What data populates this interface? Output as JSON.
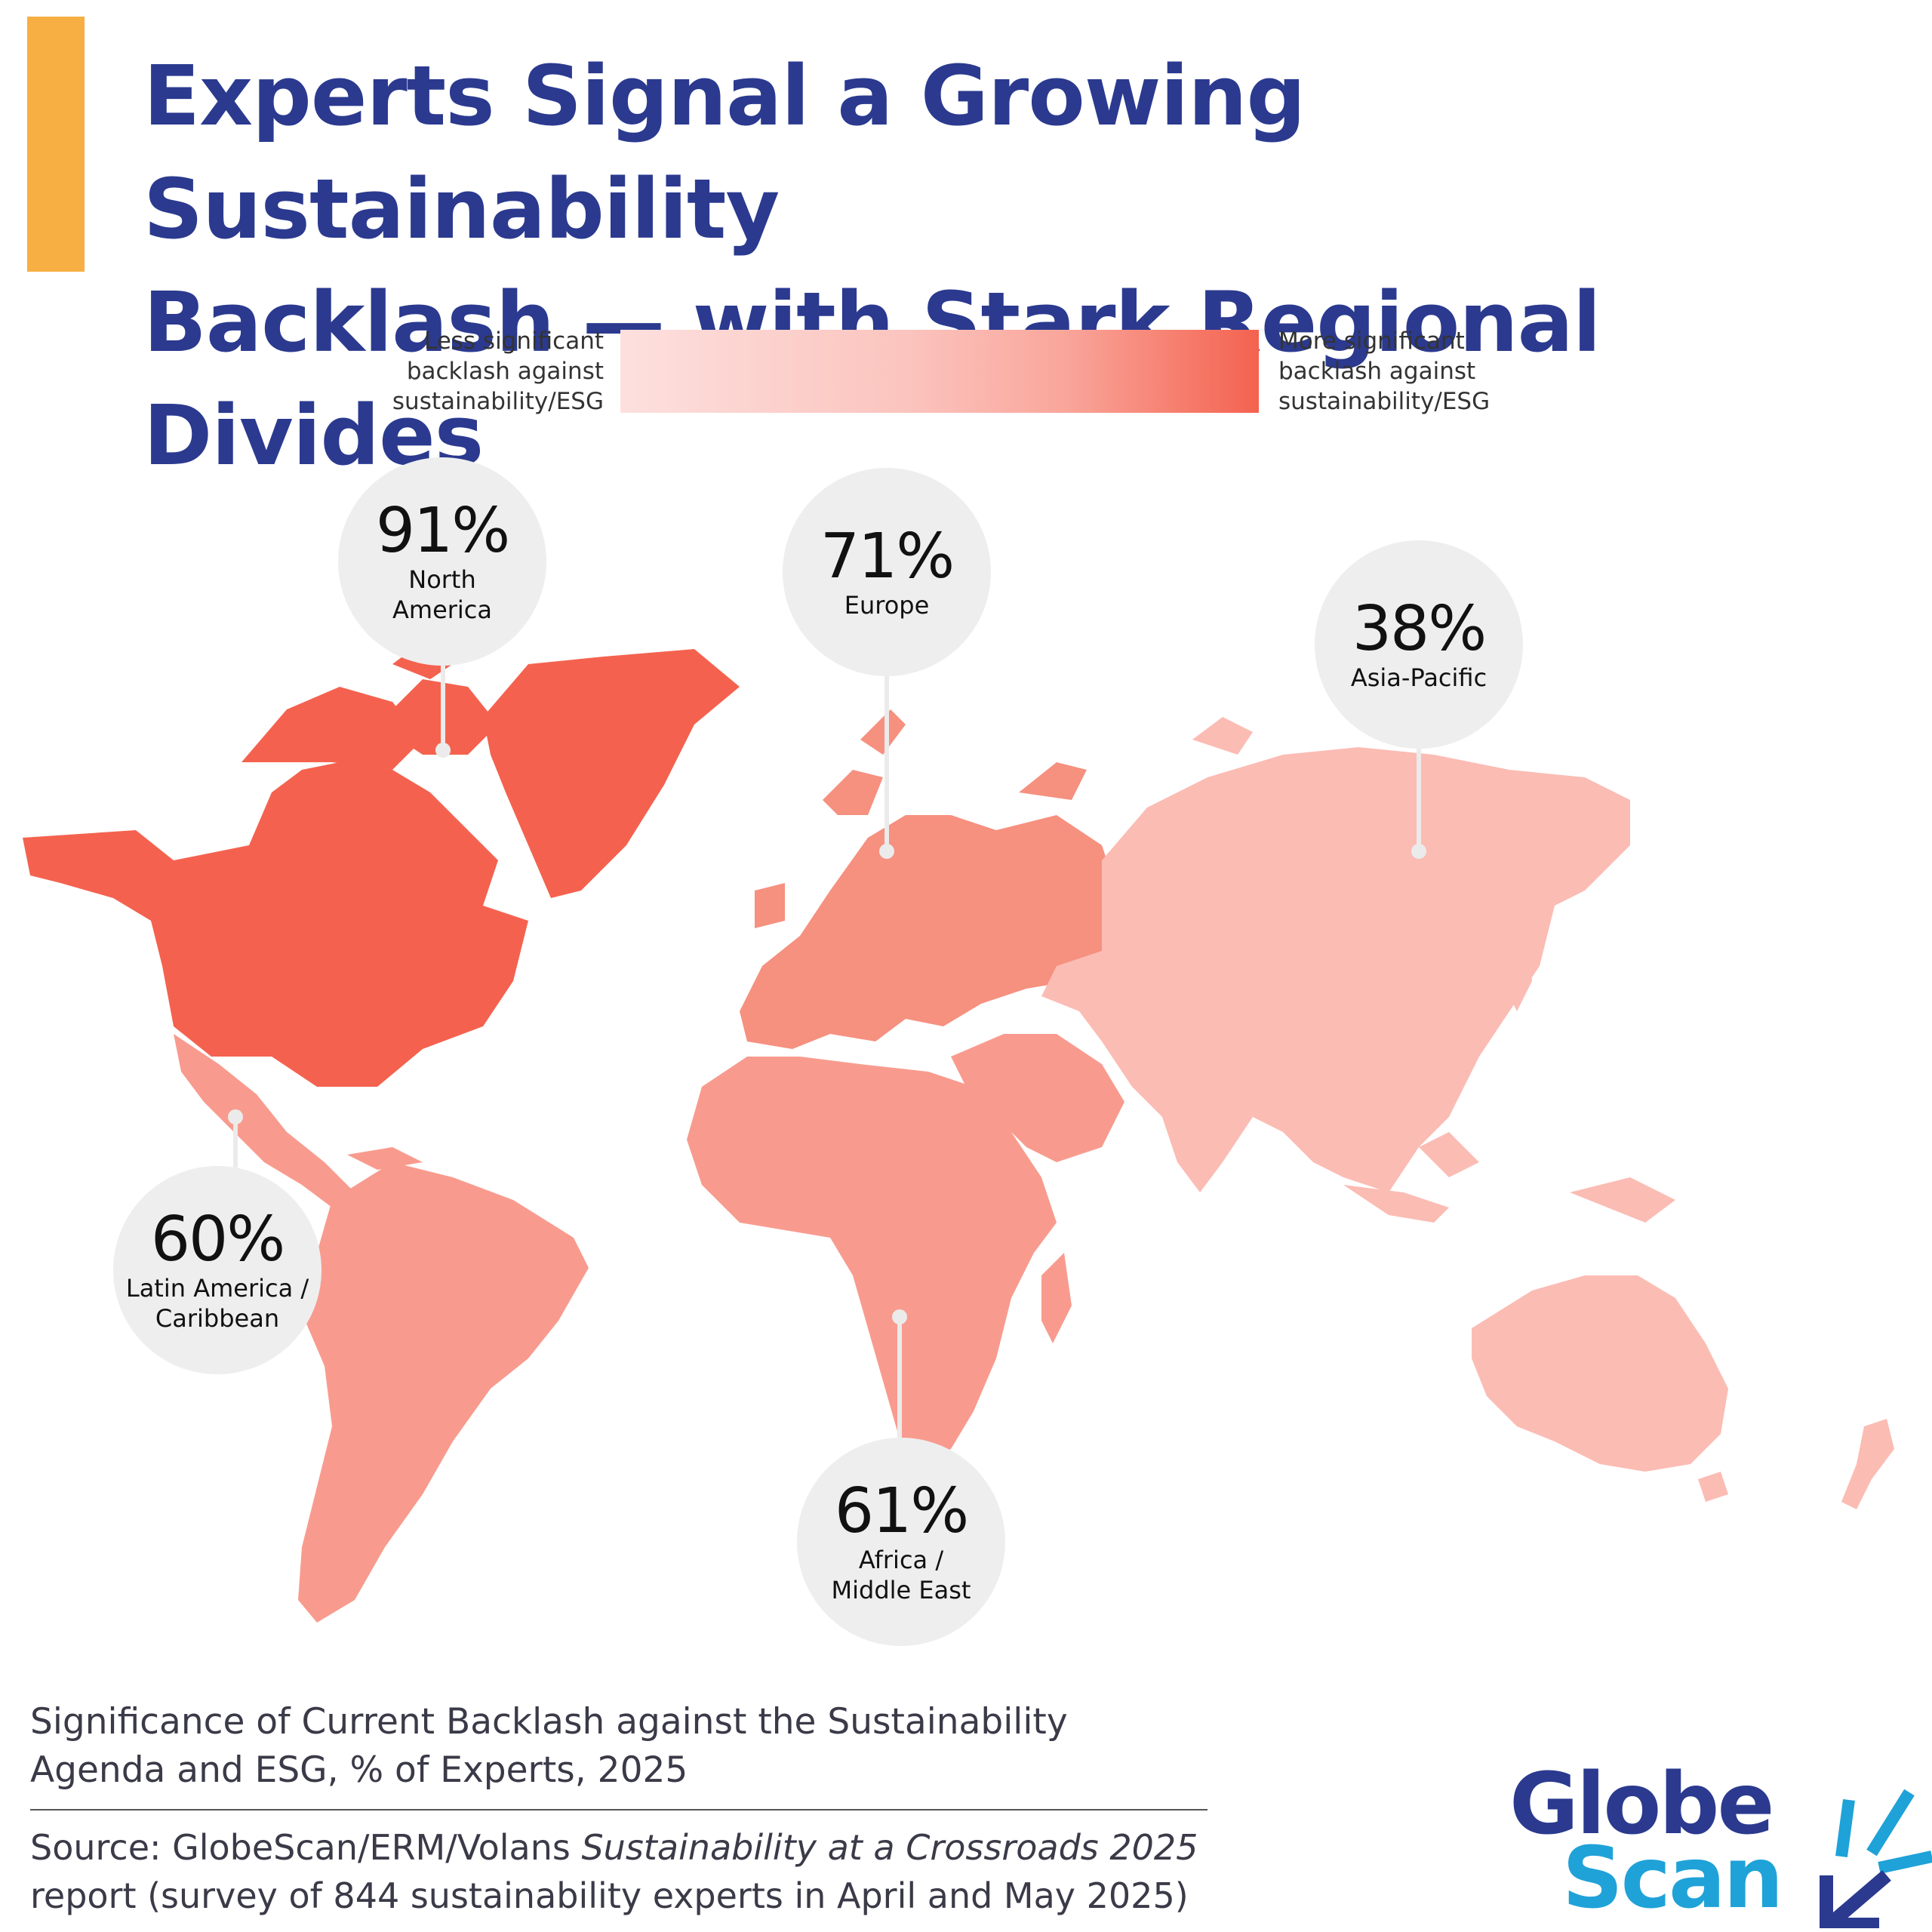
{
  "title": {
    "line1": "Experts Signal a Growing Sustainability",
    "line2": "Backlash — with Stark Regional Divides"
  },
  "legend": {
    "less": "Less significant\nbacklash against\nsustainability/ESG",
    "more": "More significant\nbacklash against\nsustainability/ESG"
  },
  "colors": {
    "accent_bar": "#f7ae42",
    "title": "#2b3a8f",
    "north_america": "#f4624f",
    "europe": "#f6907f",
    "latin_america": "#f89b8e",
    "africa_middle_east": "#f89b8e",
    "asia_pacific": "#fbbcb4"
  },
  "regions": [
    {
      "id": "north-america",
      "pct": "91%",
      "value": 91,
      "label": "North\nAmerica"
    },
    {
      "id": "europe",
      "pct": "71%",
      "value": 71,
      "label": "Europe"
    },
    {
      "id": "asia-pacific",
      "pct": "38%",
      "value": 38,
      "label": "Asia-Pacific"
    },
    {
      "id": "latin-america",
      "pct": "60%",
      "value": 60,
      "label": "Latin America /\nCaribbean"
    },
    {
      "id": "africa-middle-east",
      "pct": "61%",
      "value": 61,
      "label": "Africa /\nMiddle East"
    }
  ],
  "caption": "Significance of Current Backlash against the Sustainability Agenda and ESG, % of Experts, 2025",
  "source": {
    "prefix": "Source: GlobeScan/ERM/Volans ",
    "report": "Sustainability at a Crossroads 2025",
    "suffix": " report (survey of 844 sustainability experts in April and May 2025)"
  },
  "logo": {
    "line1": "Globe",
    "line2": "Scan"
  }
}
